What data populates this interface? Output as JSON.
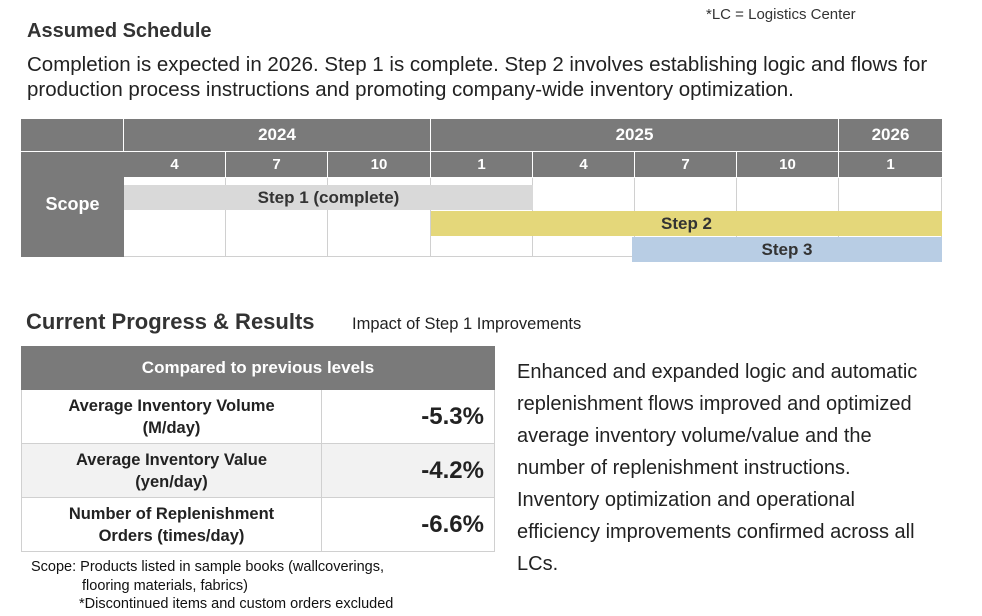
{
  "note": "*LC = Logistics Center",
  "schedule": {
    "title": "Assumed Schedule",
    "description_line1": "Completion is expected in 2026. Step 1 is complete. Step 2 involves establishing logic and flows for",
    "description_line2": "production process instructions and promoting company-wide inventory optimization.",
    "years": [
      "2024",
      "2025",
      "2026"
    ],
    "months": [
      "4",
      "7",
      "10",
      "1",
      "4",
      "7",
      "10",
      "1"
    ],
    "row_label": "Scope",
    "steps": [
      "Step 1 (complete)",
      "Step 2",
      "Step 3"
    ],
    "colors": {
      "header": "#7a7a7a",
      "step1": "#d9d9d9",
      "step2": "#e4d77a",
      "step3": "#b8cde4"
    }
  },
  "progress": {
    "title": "Current Progress & Results",
    "subtitle": "Impact of Step 1 Improvements",
    "table_header": "Compared to previous levels",
    "rows": [
      {
        "label1": "Average Inventory Volume",
        "label2": "(M/day)",
        "value": "-5.3%"
      },
      {
        "label1": "Average Inventory Value",
        "label2": "(yen/day)",
        "value": "-4.2%"
      },
      {
        "label1": "Number of Replenishment",
        "label2": "Orders (times/day)",
        "value": "-6.6%"
      }
    ],
    "scope_note1": "Scope: Products listed in sample books (wallcoverings,",
    "scope_note2": "flooring materials, fabrics)",
    "scope_note3": "*Discontinued items and custom orders excluded",
    "description": [
      "Enhanced and expanded logic and automatic",
      "replenishment flows improved and optimized",
      "average inventory volume/value and the",
      "number of replenishment instructions.",
      "Inventory optimization and operational",
      "efficiency improvements confirmed across all",
      "LCs."
    ]
  }
}
